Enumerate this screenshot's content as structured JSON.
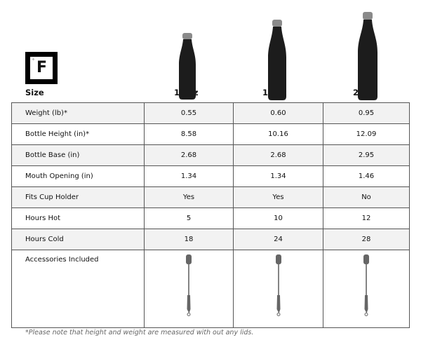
{
  "logo": {
    "text": "F",
    "degree": "°"
  },
  "header": {
    "size_label": "Size",
    "sizes": [
      "12 oz",
      "17 oz",
      "25 oz"
    ]
  },
  "rows": [
    {
      "label": "Weight (lb)*",
      "values": [
        "0.55",
        "0.60",
        "0.95"
      ]
    },
    {
      "label": "Bottle Height (in)*",
      "values": [
        "8.58",
        "10.16",
        "12.09"
      ]
    },
    {
      "label": "Bottle Base (in)",
      "values": [
        "2.68",
        "2.68",
        "2.95"
      ]
    },
    {
      "label": "Mouth Opening (in)",
      "values": [
        "1.34",
        "1.34",
        "1.46"
      ]
    },
    {
      "label": "Fits Cup Holder",
      "values": [
        "Yes",
        "Yes",
        "No"
      ]
    },
    {
      "label": "Hours Hot",
      "values": [
        "5",
        "10",
        "12"
      ]
    },
    {
      "label": "Hours Cold",
      "values": [
        "18",
        "24",
        "28"
      ]
    }
  ],
  "accessories": {
    "label": "Accessories Included",
    "icon": "bottle-brush-icon"
  },
  "footnote": "*Please note that height and weight are measured with out any lids.",
  "colors": {
    "row_shade": "#f2f2f2",
    "border": "#555555",
    "bottle": "#1c1c1c",
    "cap": "#8a8a8a"
  }
}
